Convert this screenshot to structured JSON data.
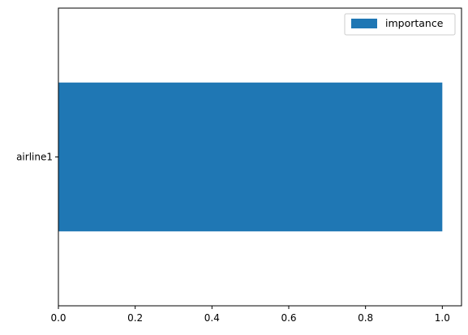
{
  "chart_data": {
    "type": "bar",
    "orientation": "horizontal",
    "categories": [
      "airline1"
    ],
    "series": [
      {
        "name": "importance",
        "values": [
          1.0
        ],
        "color": "#1f77b4"
      }
    ],
    "xlim": [
      0,
      1.05
    ],
    "xticks": [
      {
        "value": 0.0,
        "label": "0.0"
      },
      {
        "value": 0.2,
        "label": "0.2"
      },
      {
        "value": 0.4,
        "label": "0.4"
      },
      {
        "value": 0.6,
        "label": "0.6"
      },
      {
        "value": 0.8,
        "label": "0.8"
      },
      {
        "value": 1.0,
        "label": "1.0"
      }
    ],
    "grid": false,
    "legend": {
      "placement": "top-right"
    }
  }
}
